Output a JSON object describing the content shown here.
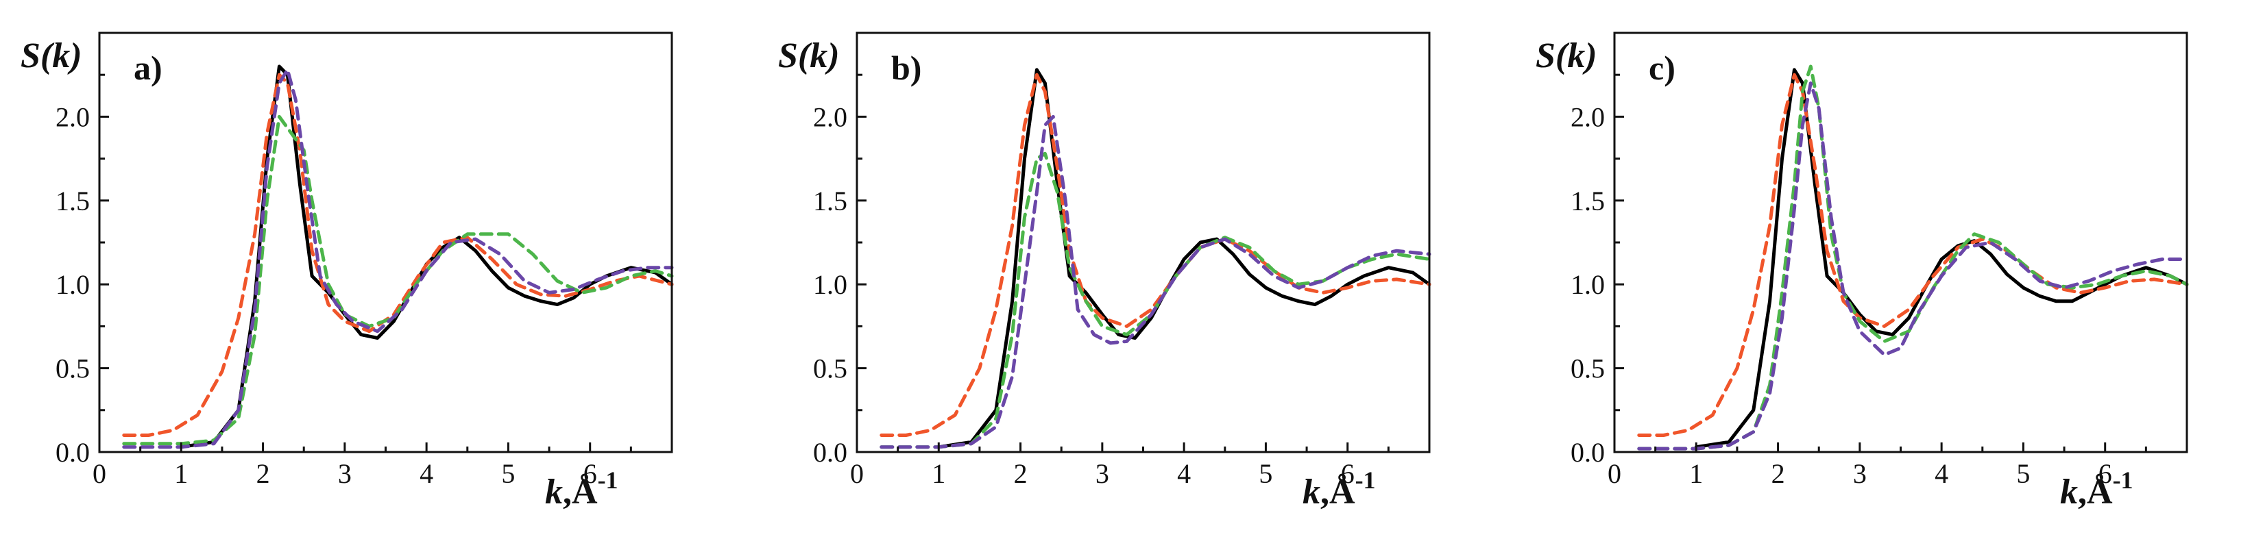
{
  "figure": {
    "y_axis_label": "S(k)",
    "x_axis_label_k": "k",
    "x_axis_label_unit": ",Å",
    "x_axis_label_exp": "-1"
  },
  "colors": {
    "black": "#000000",
    "red": "#f0552a",
    "green": "#4cb54a",
    "purple": "#6a47a8"
  },
  "chart_data": [
    {
      "type": "line",
      "panel_label": "a)",
      "xlabel": "k,Å-1",
      "ylabel": "S(k)",
      "xlim": [
        0,
        7
      ],
      "ylim": [
        0,
        2.5
      ],
      "xticks": [
        "0",
        "1",
        "2",
        "3",
        "4",
        "5",
        "6"
      ],
      "yticks": [
        "0.0",
        "0.5",
        "1.0",
        "1.5",
        "2.0"
      ],
      "series": [
        {
          "style": "solid",
          "color": "#000000",
          "x": [
            1.0,
            1.4,
            1.7,
            1.9,
            2.05,
            2.2,
            2.3,
            2.45,
            2.6,
            2.8,
            3.0,
            3.2,
            3.4,
            3.6,
            3.8,
            4.0,
            4.2,
            4.4,
            4.6,
            4.8,
            5.0,
            5.2,
            5.4,
            5.6,
            5.8,
            6.0,
            6.2,
            6.5,
            6.8,
            7.0
          ],
          "y": [
            0.03,
            0.06,
            0.25,
            0.9,
            1.75,
            2.3,
            2.25,
            1.6,
            1.05,
            0.95,
            0.82,
            0.7,
            0.68,
            0.78,
            0.95,
            1.12,
            1.22,
            1.28,
            1.2,
            1.08,
            0.98,
            0.93,
            0.9,
            0.88,
            0.92,
            1.0,
            1.05,
            1.1,
            1.07,
            1.0
          ]
        },
        {
          "style": "dashed",
          "color": "#f0552a",
          "x": [
            0.3,
            0.6,
            0.9,
            1.2,
            1.5,
            1.7,
            1.9,
            2.05,
            2.2,
            2.3,
            2.45,
            2.6,
            2.8,
            3.0,
            3.3,
            3.6,
            3.9,
            4.2,
            4.5,
            4.8,
            5.1,
            5.4,
            5.7,
            6.0,
            6.3,
            6.6,
            7.0
          ],
          "y": [
            0.1,
            0.1,
            0.13,
            0.22,
            0.48,
            0.8,
            1.3,
            1.9,
            2.25,
            2.2,
            1.8,
            1.2,
            0.88,
            0.78,
            0.72,
            0.82,
            1.05,
            1.25,
            1.28,
            1.15,
            1.0,
            0.94,
            0.93,
            0.97,
            1.02,
            1.05,
            1.0
          ]
        },
        {
          "style": "dashed",
          "color": "#4cb54a",
          "x": [
            0.3,
            0.7,
            1.0,
            1.4,
            1.7,
            1.9,
            2.05,
            2.2,
            2.35,
            2.5,
            2.6,
            2.8,
            3.0,
            3.3,
            3.6,
            3.9,
            4.2,
            4.5,
            4.8,
            5.0,
            5.3,
            5.6,
            5.9,
            6.2,
            6.5,
            6.8,
            7.0
          ],
          "y": [
            0.05,
            0.05,
            0.05,
            0.07,
            0.2,
            0.7,
            1.5,
            2.0,
            1.9,
            1.8,
            1.5,
            1.0,
            0.82,
            0.75,
            0.8,
            1.02,
            1.2,
            1.3,
            1.3,
            1.3,
            1.18,
            1.02,
            0.95,
            0.98,
            1.05,
            1.08,
            1.05
          ]
        },
        {
          "style": "dashed",
          "color": "#6a47a8",
          "x": [
            0.3,
            0.7,
            1.0,
            1.4,
            1.7,
            1.9,
            2.05,
            2.2,
            2.3,
            2.4,
            2.55,
            2.7,
            2.9,
            3.1,
            3.4,
            3.7,
            4.0,
            4.3,
            4.6,
            4.9,
            5.2,
            5.5,
            5.8,
            6.1,
            6.4,
            6.7,
            7.0
          ],
          "y": [
            0.03,
            0.03,
            0.03,
            0.05,
            0.25,
            0.85,
            1.7,
            2.2,
            2.28,
            2.1,
            1.55,
            1.05,
            0.88,
            0.78,
            0.72,
            0.85,
            1.08,
            1.25,
            1.27,
            1.18,
            1.02,
            0.95,
            0.97,
            1.03,
            1.08,
            1.1,
            1.1
          ]
        }
      ]
    },
    {
      "type": "line",
      "panel_label": "b)",
      "xlabel": "k,Å-1",
      "ylabel": "S(k)",
      "xlim": [
        0,
        7
      ],
      "ylim": [
        0,
        2.5
      ],
      "xticks": [
        "0",
        "1",
        "2",
        "3",
        "4",
        "5",
        "6"
      ],
      "yticks": [
        "0.0",
        "0.5",
        "1.0",
        "1.5",
        "2.0"
      ],
      "series": [
        {
          "style": "solid",
          "color": "#000000",
          "x": [
            1.0,
            1.4,
            1.7,
            1.9,
            2.05,
            2.2,
            2.3,
            2.45,
            2.6,
            2.8,
            3.0,
            3.2,
            3.4,
            3.6,
            3.8,
            4.0,
            4.2,
            4.4,
            4.6,
            4.8,
            5.0,
            5.2,
            5.4,
            5.6,
            5.8,
            6.0,
            6.2,
            6.5,
            6.8,
            7.0
          ],
          "y": [
            0.03,
            0.06,
            0.25,
            0.9,
            1.75,
            2.28,
            2.2,
            1.6,
            1.05,
            0.95,
            0.82,
            0.7,
            0.68,
            0.8,
            0.98,
            1.15,
            1.25,
            1.27,
            1.18,
            1.06,
            0.98,
            0.93,
            0.9,
            0.88,
            0.93,
            1.0,
            1.05,
            1.1,
            1.07,
            1.0
          ]
        },
        {
          "style": "dashed",
          "color": "#f0552a",
          "x": [
            0.3,
            0.6,
            0.9,
            1.2,
            1.5,
            1.7,
            1.9,
            2.05,
            2.2,
            2.3,
            2.45,
            2.6,
            2.8,
            3.0,
            3.3,
            3.6,
            3.9,
            4.2,
            4.5,
            4.8,
            5.1,
            5.4,
            5.7,
            6.0,
            6.3,
            6.6,
            7.0
          ],
          "y": [
            0.1,
            0.1,
            0.13,
            0.22,
            0.5,
            0.85,
            1.35,
            1.95,
            2.25,
            2.15,
            1.7,
            1.2,
            0.9,
            0.8,
            0.75,
            0.85,
            1.05,
            1.22,
            1.27,
            1.2,
            1.08,
            0.98,
            0.95,
            0.98,
            1.02,
            1.03,
            1.0
          ]
        },
        {
          "style": "dashed",
          "color": "#4cb54a",
          "x": [
            0.3,
            0.7,
            1.0,
            1.4,
            1.7,
            1.9,
            2.05,
            2.2,
            2.3,
            2.45,
            2.6,
            2.8,
            3.0,
            3.3,
            3.6,
            3.9,
            4.2,
            4.5,
            4.8,
            5.1,
            5.4,
            5.7,
            6.0,
            6.3,
            6.6,
            7.0
          ],
          "y": [
            0.03,
            0.03,
            0.03,
            0.05,
            0.2,
            0.7,
            1.4,
            1.75,
            1.78,
            1.55,
            1.1,
            0.9,
            0.75,
            0.7,
            0.82,
            1.05,
            1.22,
            1.28,
            1.22,
            1.08,
            1.0,
            1.02,
            1.1,
            1.15,
            1.18,
            1.15
          ]
        },
        {
          "style": "dashed",
          "color": "#6a47a8",
          "x": [
            0.3,
            0.7,
            1.0,
            1.4,
            1.7,
            1.9,
            2.05,
            2.2,
            2.3,
            2.4,
            2.55,
            2.7,
            2.9,
            3.1,
            3.3,
            3.6,
            3.9,
            4.2,
            4.5,
            4.8,
            5.1,
            5.4,
            5.7,
            6.0,
            6.3,
            6.6,
            7.0
          ],
          "y": [
            0.03,
            0.03,
            0.03,
            0.05,
            0.15,
            0.45,
            1.0,
            1.55,
            1.95,
            2.0,
            1.5,
            0.85,
            0.7,
            0.65,
            0.66,
            0.82,
            1.05,
            1.22,
            1.27,
            1.18,
            1.05,
            0.98,
            1.02,
            1.1,
            1.17,
            1.2,
            1.18
          ]
        }
      ]
    },
    {
      "type": "line",
      "panel_label": "c)",
      "xlabel": "k,Å-1",
      "ylabel": "S(k)",
      "xlim": [
        0,
        7
      ],
      "ylim": [
        0,
        2.5
      ],
      "xticks": [
        "0",
        "1",
        "2",
        "3",
        "4",
        "5",
        "6"
      ],
      "yticks": [
        "0.0",
        "0.5",
        "1.0",
        "1.5",
        "2.0"
      ],
      "series": [
        {
          "style": "solid",
          "color": "#000000",
          "x": [
            1.0,
            1.4,
            1.7,
            1.9,
            2.05,
            2.2,
            2.3,
            2.45,
            2.6,
            2.8,
            3.0,
            3.2,
            3.4,
            3.6,
            3.8,
            4.0,
            4.2,
            4.4,
            4.6,
            4.8,
            5.0,
            5.2,
            5.4,
            5.6,
            5.8,
            6.0,
            6.2,
            6.5,
            6.8,
            7.0
          ],
          "y": [
            0.03,
            0.06,
            0.25,
            0.9,
            1.75,
            2.28,
            2.2,
            1.6,
            1.05,
            0.95,
            0.82,
            0.72,
            0.7,
            0.8,
            0.98,
            1.15,
            1.23,
            1.26,
            1.18,
            1.06,
            0.98,
            0.93,
            0.9,
            0.9,
            0.95,
            1.0,
            1.05,
            1.1,
            1.05,
            1.0
          ]
        },
        {
          "style": "dashed",
          "color": "#f0552a",
          "x": [
            0.3,
            0.6,
            0.9,
            1.2,
            1.5,
            1.7,
            1.9,
            2.05,
            2.2,
            2.3,
            2.45,
            2.6,
            2.8,
            3.0,
            3.3,
            3.6,
            3.9,
            4.2,
            4.5,
            4.8,
            5.1,
            5.4,
            5.7,
            6.0,
            6.3,
            6.6,
            7.0
          ],
          "y": [
            0.1,
            0.1,
            0.13,
            0.22,
            0.5,
            0.85,
            1.35,
            1.95,
            2.25,
            2.15,
            1.7,
            1.2,
            0.9,
            0.8,
            0.75,
            0.85,
            1.05,
            1.22,
            1.27,
            1.2,
            1.08,
            0.98,
            0.95,
            0.98,
            1.02,
            1.03,
            1.0
          ]
        },
        {
          "style": "dashed",
          "color": "#4cb54a",
          "x": [
            0.3,
            0.7,
            1.0,
            1.4,
            1.7,
            1.9,
            2.05,
            2.2,
            2.3,
            2.4,
            2.5,
            2.65,
            2.8,
            3.0,
            3.3,
            3.6,
            3.9,
            4.2,
            4.4,
            4.7,
            5.0,
            5.3,
            5.6,
            5.9,
            6.2,
            6.5,
            6.8,
            7.0
          ],
          "y": [
            0.02,
            0.02,
            0.02,
            0.04,
            0.12,
            0.4,
            0.95,
            1.6,
            2.15,
            2.3,
            2.05,
            1.3,
            0.95,
            0.78,
            0.66,
            0.72,
            0.98,
            1.2,
            1.3,
            1.25,
            1.12,
            1.0,
            0.98,
            1.0,
            1.05,
            1.08,
            1.05,
            1.0
          ]
        },
        {
          "style": "dashed",
          "color": "#6a47a8",
          "x": [
            0.3,
            0.7,
            1.0,
            1.4,
            1.7,
            1.9,
            2.05,
            2.2,
            2.3,
            2.4,
            2.5,
            2.65,
            2.8,
            3.0,
            3.3,
            3.5,
            3.7,
            4.0,
            4.3,
            4.6,
            4.9,
            5.2,
            5.5,
            5.8,
            6.1,
            6.4,
            6.7,
            7.0
          ],
          "y": [
            0.02,
            0.02,
            0.02,
            0.04,
            0.12,
            0.35,
            0.8,
            1.45,
            1.95,
            2.2,
            2.05,
            1.4,
            0.95,
            0.72,
            0.58,
            0.62,
            0.82,
            1.05,
            1.22,
            1.25,
            1.15,
            1.02,
            0.98,
            1.02,
            1.08,
            1.12,
            1.15,
            1.15
          ]
        }
      ]
    }
  ]
}
